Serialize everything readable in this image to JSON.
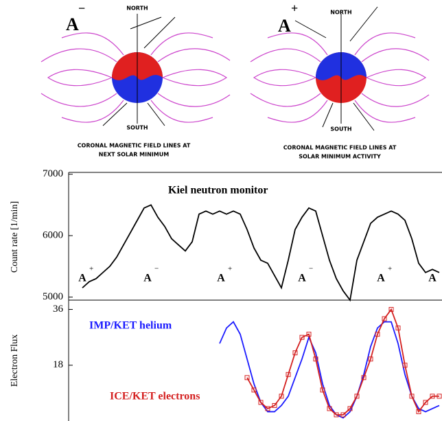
{
  "diagrams": [
    {
      "sign": "A",
      "sign_sup": "−",
      "north": "NORTH",
      "south": "SOUTH",
      "caption": [
        "CORONAL MAGNETIC FIELD LINES AT",
        "NEXT SOLAR MINIMUM"
      ]
    },
    {
      "sign": "A",
      "sign_sup": "+",
      "north": "NORTH",
      "south": "SOUTH",
      "caption": [
        "CORONAL MAGNETIC FIELD LINES AT",
        "SOLAR MINIMUM ACTIVITY"
      ]
    }
  ],
  "chart_data": [
    {
      "type": "line",
      "title": "Kiel neutron monitor",
      "y_label": "Count rate [1/min]",
      "categories": [
        null,
        null,
        null,
        null,
        null,
        null,
        null,
        null,
        null,
        null,
        null,
        null,
        null,
        null,
        null,
        null,
        null,
        null,
        null,
        null,
        null,
        null,
        null,
        null,
        null,
        null,
        null,
        null,
        null,
        null,
        null,
        null,
        null,
        null,
        null,
        null,
        null,
        null,
        null,
        null,
        null,
        null,
        null,
        null,
        null,
        null,
        null,
        null,
        null,
        null,
        null,
        null,
        null
      ],
      "series": [
        {
          "name": "Kiel neutron monitor",
          "color": "#000000",
          "values": [
            5150,
            5250,
            5300,
            5400,
            5500,
            5650,
            5850,
            6050,
            6250,
            6450,
            6500,
            6300,
            6150,
            5950,
            5850,
            5750,
            5900,
            6350,
            6400,
            6350,
            6400,
            6350,
            6400,
            6350,
            6100,
            5800,
            5600,
            5550,
            5350,
            5150,
            5600,
            6100,
            6300,
            6450,
            6400,
            6000,
            5600,
            5300,
            5100,
            4950,
            5600,
            5900,
            6200,
            6300,
            6350,
            6400,
            6350,
            6250,
            5950,
            5550,
            5400,
            5450,
            5400
          ]
        }
      ],
      "annotations": [
        {
          "text": "A",
          "sup": "+"
        },
        {
          "text": "A",
          "sup": "−"
        },
        {
          "text": "A",
          "sup": "+"
        },
        {
          "text": "A",
          "sup": "−"
        },
        {
          "text": "A",
          "sup": "+"
        },
        {
          "text": "A",
          "sup": ""
        }
      ],
      "ylim": [
        4950,
        7030
      ],
      "yticks": [
        5000,
        6000,
        7000
      ]
    },
    {
      "type": "line",
      "y_label": "Electron Flux",
      "categories": [
        null,
        null,
        null,
        null,
        null,
        null,
        null,
        null,
        null,
        null,
        null,
        null,
        null,
        null,
        null,
        null,
        null,
        null,
        null,
        null,
        null,
        null,
        null,
        null,
        null,
        null,
        null,
        null,
        null,
        null,
        null,
        null,
        null,
        null,
        null,
        null,
        null,
        null,
        null,
        null,
        null,
        null,
        null,
        null,
        null,
        null,
        null,
        null,
        null,
        null,
        null,
        null,
        null
      ],
      "series": [
        {
          "name": "IMP/KET helium",
          "color": "#1a1aff",
          "marker": "none",
          "values": [
            null,
            null,
            null,
            null,
            null,
            null,
            null,
            null,
            null,
            null,
            null,
            null,
            null,
            null,
            null,
            null,
            null,
            null,
            null,
            null,
            25,
            30,
            32,
            28,
            20,
            12,
            6,
            3,
            3,
            5,
            8,
            14,
            20,
            27,
            22,
            12,
            5,
            2,
            1,
            3,
            8,
            15,
            24,
            30,
            32,
            32,
            25,
            15,
            8,
            4,
            3,
            4,
            5
          ]
        },
        {
          "name": "ICE/KET electrons",
          "color": "#d42020",
          "marker": "square",
          "values": [
            null,
            null,
            null,
            null,
            null,
            null,
            null,
            null,
            null,
            null,
            null,
            null,
            null,
            null,
            null,
            null,
            null,
            null,
            null,
            null,
            null,
            null,
            null,
            null,
            14,
            10,
            6,
            4,
            5,
            8,
            15,
            22,
            27,
            28,
            20,
            10,
            4,
            2,
            2,
            4,
            8,
            14,
            20,
            28,
            33,
            36,
            30,
            18,
            8,
            3,
            6,
            8,
            8
          ]
        }
      ],
      "ylim": [
        0,
        39
      ],
      "yticks": [
        18,
        36
      ]
    }
  ]
}
